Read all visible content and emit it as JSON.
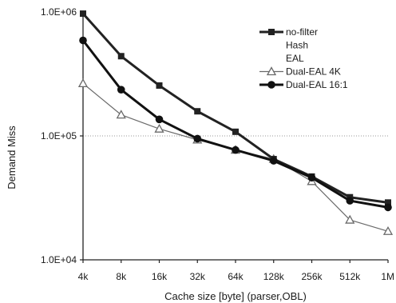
{
  "chart_data": {
    "type": "line",
    "title": "",
    "xlabel": "Cache size [byte] (parser,OBL)",
    "ylabel": "Demand Miss",
    "y_scale": "log",
    "ylim": [
      10000,
      1000000
    ],
    "yticks": [
      {
        "value": 1000000,
        "label": "1.0E+06"
      },
      {
        "value": 100000,
        "label": "1.0E+05"
      },
      {
        "value": 10000,
        "label": "1.0E+04"
      }
    ],
    "gridlines": "horizontal at 1.0E+05",
    "categories": [
      "4k",
      "8k",
      "16k",
      "32k",
      "64k",
      "128k",
      "256k",
      "512k",
      "1M"
    ],
    "legend_placement": "top-right",
    "series": [
      {
        "name": "no-filter",
        "marker": "square",
        "color": "#222222",
        "line_width": 3,
        "values": [
          970000,
          440000,
          255000,
          158000,
          108000,
          65000,
          47000,
          32000,
          29000
        ]
      },
      {
        "name": "Hash",
        "marker": "none",
        "color": "#555555",
        "line_width": 1,
        "values": [
          970000,
          440000,
          255000,
          158000,
          108000,
          65000,
          47000,
          32000,
          29000
        ]
      },
      {
        "name": "EAL",
        "marker": "none",
        "color": "#555555",
        "line_width": 1,
        "values": [
          970000,
          440000,
          255000,
          158000,
          108000,
          65000,
          47000,
          32000,
          29000
        ]
      },
      {
        "name": "Dual-EAL 4K",
        "marker": "triangle",
        "color": "#6a6a6a",
        "line_width": 1.2,
        "values": [
          265000,
          148000,
          114000,
          93000,
          77000,
          65000,
          43000,
          21000,
          17000
        ]
      },
      {
        "name": "Dual-EAL 16:1",
        "marker": "circle",
        "color": "#111111",
        "line_width": 3,
        "values": [
          590000,
          236000,
          136000,
          95000,
          77000,
          63000,
          46000,
          30000,
          26500
        ]
      }
    ]
  }
}
